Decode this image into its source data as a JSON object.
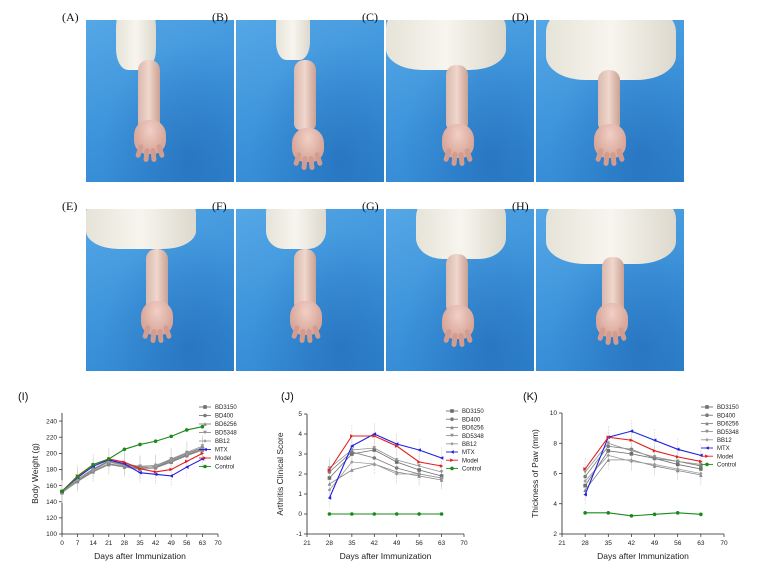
{
  "photo_labels": [
    "(A)",
    "(B)",
    "(C)",
    "(D)",
    "(E)",
    "(F)",
    "(G)",
    "(H)"
  ],
  "photo_subject": "rat-hind-paw-photo",
  "chart_data": [
    {
      "type": "line",
      "panel_label": "(I)",
      "xlabel": "Days after Immunization",
      "ylabel": "Body Weight (g)",
      "xlim": [
        0,
        70
      ],
      "ylim": [
        100,
        250
      ],
      "xticks": [
        "0",
        "7",
        "14",
        "21",
        "28",
        "35",
        "42",
        "49",
        "56",
        "63",
        "70"
      ],
      "yticks": [
        "100",
        "120",
        "140",
        "160",
        "180",
        "200",
        "220",
        "240"
      ],
      "legend_position": "top-right",
      "x": [
        0,
        7,
        14,
        21,
        28,
        35,
        42,
        49,
        56,
        63
      ],
      "series": [
        {
          "name": "BD3150",
          "color": "#6e6e6e",
          "marker": "square",
          "values": [
            152,
            167,
            180,
            190,
            186,
            183,
            183,
            190,
            198,
            205
          ]
        },
        {
          "name": "BD400",
          "color": "#7a7a7a",
          "marker": "circle",
          "values": [
            153,
            166,
            178,
            187,
            184,
            181,
            184,
            192,
            200,
            207
          ]
        },
        {
          "name": "BD6256",
          "color": "#858585",
          "marker": "triangle",
          "values": [
            151,
            165,
            177,
            186,
            183,
            180,
            182,
            189,
            197,
            204
          ]
        },
        {
          "name": "BD5348",
          "color": "#909090",
          "marker": "triangle-down",
          "values": [
            152,
            168,
            181,
            191,
            187,
            184,
            185,
            193,
            201,
            209
          ]
        },
        {
          "name": "BB12",
          "color": "#9c9c9c",
          "marker": "diamond",
          "values": [
            153,
            167,
            179,
            189,
            185,
            182,
            184,
            191,
            199,
            206
          ]
        },
        {
          "name": "MTX",
          "color": "#1f1fe0",
          "marker": "triangle-left",
          "values": [
            153,
            170,
            184,
            192,
            187,
            176,
            174,
            172,
            183,
            193
          ]
        },
        {
          "name": "Model",
          "color": "#e02020",
          "marker": "triangle-right",
          "values": [
            153,
            172,
            186,
            193,
            189,
            181,
            177,
            180,
            190,
            200
          ]
        },
        {
          "name": "Control",
          "color": "#1a8a1a",
          "marker": "circle",
          "values": [
            153,
            171,
            186,
            193,
            205,
            211,
            215,
            221,
            229,
            233
          ]
        }
      ]
    },
    {
      "type": "line",
      "panel_label": "(J)",
      "xlabel": "Days after Immunization",
      "ylabel": "Arthritis Clinical Score",
      "xlim": [
        21,
        70
      ],
      "ylim": [
        -1,
        5
      ],
      "xticks": [
        "21",
        "28",
        "35",
        "42",
        "49",
        "56",
        "63",
        "70"
      ],
      "yticks": [
        "-1",
        "0",
        "1",
        "2",
        "3",
        "4",
        "5"
      ],
      "legend_position": "right",
      "x": [
        28,
        35,
        42,
        49,
        56,
        63
      ],
      "series": [
        {
          "name": "BD3150",
          "color": "#6e6e6e",
          "marker": "square",
          "values": [
            1.8,
            3.0,
            3.2,
            2.6,
            2.2,
            1.9
          ]
        },
        {
          "name": "BD400",
          "color": "#7a7a7a",
          "marker": "circle",
          "values": [
            2.1,
            3.1,
            2.8,
            2.3,
            2.0,
            1.8
          ]
        },
        {
          "name": "BD6256",
          "color": "#858585",
          "marker": "triangle",
          "values": [
            1.5,
            2.2,
            2.5,
            2.1,
            1.9,
            1.7
          ]
        },
        {
          "name": "BD5348",
          "color": "#909090",
          "marker": "triangle-down",
          "values": [
            2.3,
            3.2,
            3.3,
            2.7,
            2.4,
            2.1
          ]
        },
        {
          "name": "BB12",
          "color": "#9c9c9c",
          "marker": "diamond",
          "values": [
            1.2,
            2.6,
            2.5,
            2.0,
            2.0,
            1.8
          ]
        },
        {
          "name": "MTX",
          "color": "#1f1fe0",
          "marker": "triangle-left",
          "values": [
            0.8,
            3.4,
            4.0,
            3.5,
            3.2,
            2.8
          ]
        },
        {
          "name": "Model",
          "color": "#e02020",
          "marker": "triangle-right",
          "values": [
            2.2,
            3.9,
            3.9,
            3.4,
            2.6,
            2.4
          ]
        },
        {
          "name": "Control",
          "color": "#1a8a1a",
          "marker": "circle",
          "values": [
            0,
            0,
            0,
            0,
            0,
            0
          ]
        }
      ]
    },
    {
      "type": "line",
      "panel_label": "(K)",
      "xlabel": "Days after Immunization",
      "ylabel": "Thickness of Paw (mm)",
      "xlim": [
        21,
        70
      ],
      "ylim": [
        2,
        10
      ],
      "xticks": [
        "21",
        "28",
        "35",
        "42",
        "49",
        "56",
        "63",
        "70"
      ],
      "yticks": [
        "2",
        "4",
        "6",
        "8",
        "10"
      ],
      "legend_position": "top-right",
      "x": [
        28,
        35,
        42,
        49,
        56,
        63
      ],
      "series": [
        {
          "name": "BD3150",
          "color": "#6e6e6e",
          "marker": "square",
          "values": [
            5.2,
            7.5,
            7.3,
            7.0,
            6.6,
            6.3
          ]
        },
        {
          "name": "BD400",
          "color": "#7a7a7a",
          "marker": "circle",
          "values": [
            5.8,
            7.8,
            7.6,
            7.0,
            6.8,
            6.5
          ]
        },
        {
          "name": "BD6256",
          "color": "#858585",
          "marker": "triangle",
          "values": [
            4.9,
            6.9,
            6.9,
            6.5,
            6.2,
            5.9
          ]
        },
        {
          "name": "BD5348",
          "color": "#909090",
          "marker": "triangle-down",
          "values": [
            6.1,
            8.0,
            7.5,
            7.1,
            6.8,
            6.6
          ]
        },
        {
          "name": "BB12",
          "color": "#9c9c9c",
          "marker": "diamond",
          "values": [
            5.5,
            7.2,
            6.8,
            6.6,
            6.3,
            6.0
          ]
        },
        {
          "name": "MTX",
          "color": "#1f1fe0",
          "marker": "triangle-left",
          "values": [
            4.6,
            8.4,
            8.8,
            8.2,
            7.6,
            7.2
          ]
        },
        {
          "name": "Model",
          "color": "#e02020",
          "marker": "triangle-right",
          "values": [
            6.3,
            8.4,
            8.2,
            7.5,
            7.1,
            6.8
          ]
        },
        {
          "name": "Control",
          "color": "#1a8a1a",
          "marker": "circle",
          "values": [
            3.4,
            3.4,
            3.2,
            3.3,
            3.4,
            3.3
          ]
        }
      ]
    }
  ]
}
